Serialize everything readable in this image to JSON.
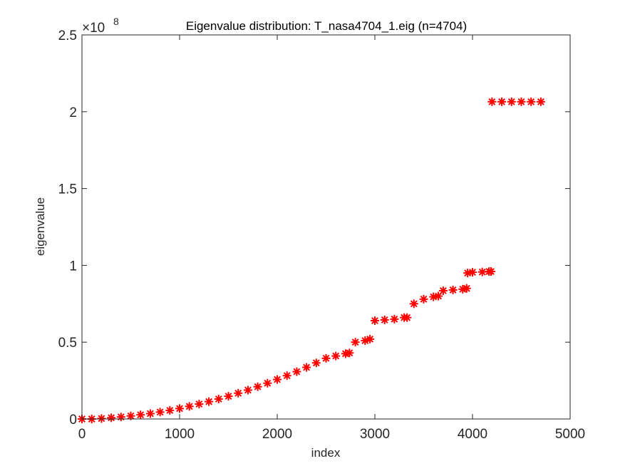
{
  "chart_data": {
    "type": "scatter",
    "title": "Eigenvalue distribution: T_nasa4704_1.eig (n=4704)",
    "xlabel": "index",
    "ylabel": "eigenvalue",
    "xlim": [
      0,
      5000
    ],
    "ylim": [
      0,
      2.5
    ],
    "y_multiplier": {
      "base": "×10",
      "exponent": "8"
    },
    "xticks": [
      0,
      1000,
      2000,
      3000,
      4000,
      5000
    ],
    "xtick_labels": [
      "0",
      "1000",
      "2000",
      "3000",
      "4000",
      "5000"
    ],
    "yticks": [
      0,
      0.5,
      1,
      1.5,
      2,
      2.5
    ],
    "ytick_labels": [
      "0",
      "0.5",
      "1",
      "1.5",
      "2",
      "2.5"
    ],
    "grid": false,
    "marker": "asterisk",
    "marker_color": "#ff0000",
    "series": [
      {
        "x": [
          0,
          100,
          200,
          300,
          400,
          500,
          600,
          700,
          800,
          900,
          1000,
          1100,
          1200,
          1300,
          1400,
          1500,
          1600,
          1700,
          1800,
          1900,
          2000,
          2100,
          2200,
          2300,
          2400,
          2500,
          2600,
          2700,
          2740,
          2800,
          2900,
          2950,
          3000,
          3100,
          3200,
          3300,
          3330,
          3400,
          3500,
          3600,
          3650,
          3700,
          3800,
          3900,
          3940,
          3950,
          4000,
          4100,
          4170,
          4190,
          4200,
          4300,
          4400,
          4500,
          4600,
          4700
        ],
        "y": [
          0.0,
          0.0,
          0.003,
          0.008,
          0.013,
          0.02,
          0.027,
          0.035,
          0.045,
          0.056,
          0.068,
          0.082,
          0.097,
          0.113,
          0.13,
          0.148,
          0.168,
          0.188,
          0.21,
          0.233,
          0.257,
          0.282,
          0.308,
          0.336,
          0.365,
          0.395,
          0.41,
          0.425,
          0.43,
          0.5,
          0.51,
          0.52,
          0.64,
          0.645,
          0.65,
          0.66,
          0.66,
          0.75,
          0.78,
          0.795,
          0.8,
          0.835,
          0.84,
          0.845,
          0.85,
          0.95,
          0.955,
          0.957,
          0.96,
          0.96,
          2.065,
          2.065,
          2.065,
          2.065,
          2.065,
          2.065
        ]
      }
    ]
  }
}
